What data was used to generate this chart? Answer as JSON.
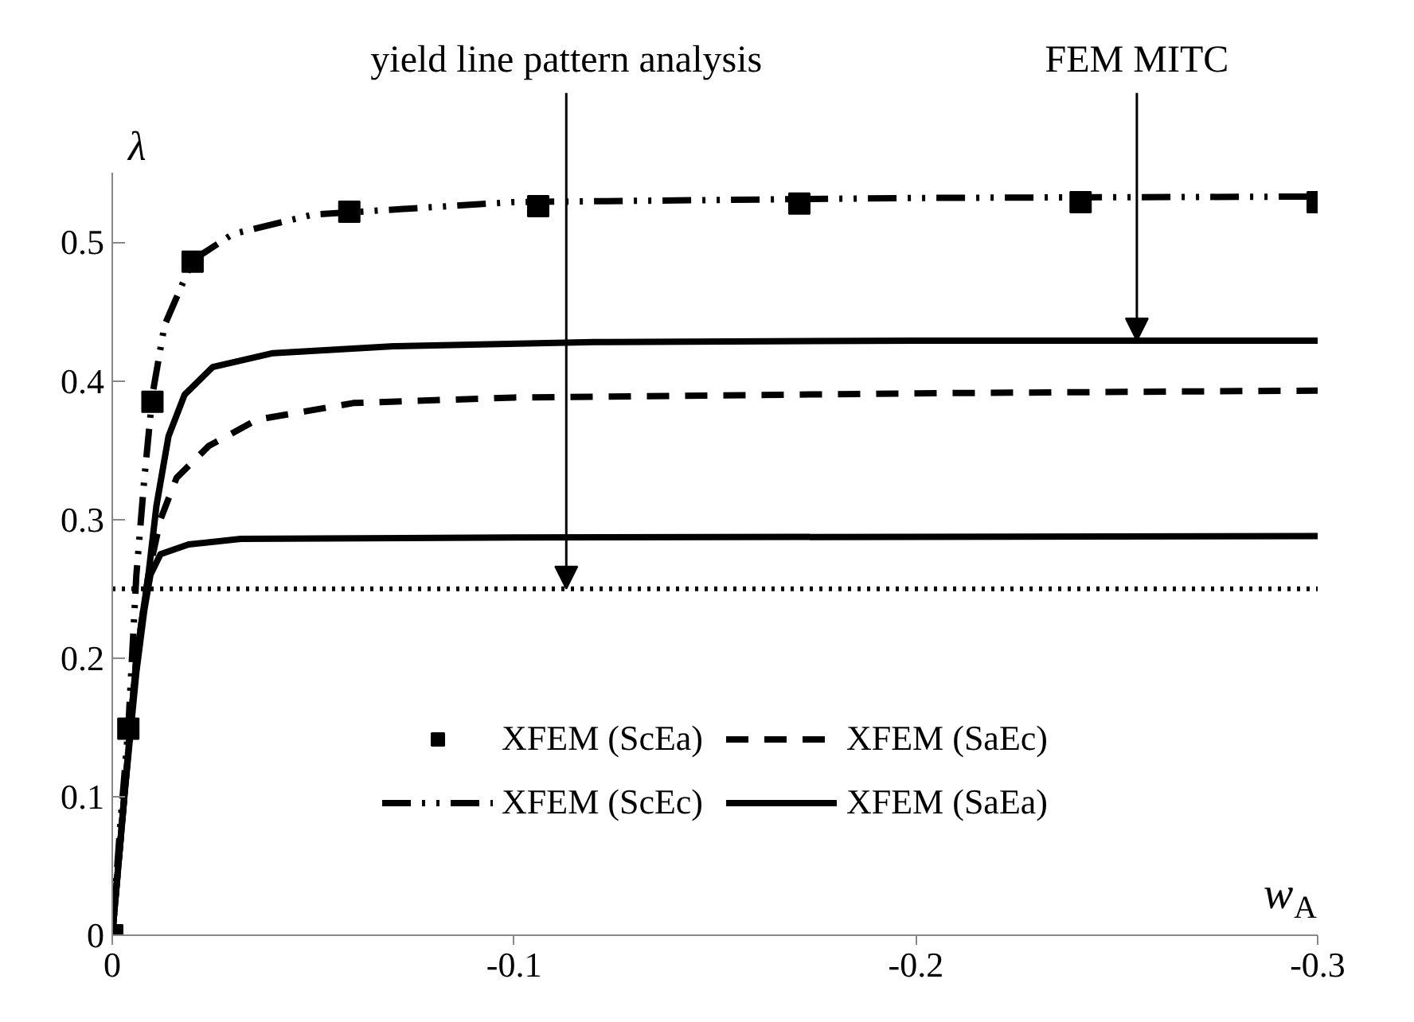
{
  "chart_data": {
    "type": "line",
    "xlabel": "w$_{A}$",
    "ylabel": "λ",
    "xlim": [
      0,
      -0.3
    ],
    "xticks": [
      0,
      -0.1,
      -0.2,
      -0.3
    ],
    "ylim": [
      0,
      0.55
    ],
    "yticks": [
      0,
      0.1,
      0.2,
      0.3,
      0.4,
      0.5
    ],
    "grid": false,
    "legend": "bottom",
    "series": [
      {
        "name": "XFEM (ScEa)",
        "type": "scatter",
        "marker": "square",
        "color": "#000000",
        "x": [
          0,
          -0.004,
          -0.01,
          -0.02,
          -0.059,
          -0.106,
          -0.171,
          -0.241,
          -0.3
        ],
        "values": [
          0,
          0.149,
          0.385,
          0.486,
          0.522,
          0.526,
          0.528,
          0.529,
          0.529
        ]
      },
      {
        "name": "XFEM (ScEc)",
        "type": "line",
        "line_style": "dashdot",
        "color": "#000000",
        "x": [
          0,
          -0.002,
          -0.004,
          -0.006,
          -0.008,
          -0.01,
          -0.013,
          -0.02,
          -0.03,
          -0.05,
          -0.1,
          -0.2,
          -0.3
        ],
        "values": [
          0,
          0.08,
          0.15,
          0.26,
          0.33,
          0.39,
          0.44,
          0.487,
          0.506,
          0.52,
          0.529,
          0.532,
          0.533
        ]
      },
      {
        "name": "XFEM (SaEc)",
        "type": "line",
        "line_style": "dashed",
        "color": "#000000",
        "x": [
          0,
          -0.003,
          -0.006,
          -0.009,
          -0.012,
          -0.016,
          -0.024,
          -0.036,
          -0.06,
          -0.1,
          -0.2,
          -0.3
        ],
        "values": [
          0,
          0.1,
          0.2,
          0.26,
          0.3,
          0.33,
          0.353,
          0.372,
          0.384,
          0.388,
          0.391,
          0.393
        ]
      },
      {
        "name": "XFEM (SaEa)",
        "type": "line",
        "line_style": "solid",
        "color": "#000000",
        "x": [
          0,
          -0.003,
          -0.006,
          -0.009,
          -0.011,
          -0.014,
          -0.018,
          -0.025,
          -0.04,
          -0.07,
          -0.12,
          -0.2,
          -0.3
        ],
        "values": [
          0,
          0.1,
          0.2,
          0.26,
          0.31,
          0.36,
          0.39,
          0.41,
          0.42,
          0.425,
          0.428,
          0.429,
          0.429
        ]
      },
      {
        "type": "line",
        "line_style": "solid",
        "color": "#000000",
        "x": [
          0,
          -0.003,
          -0.006,
          -0.008,
          -0.0095,
          -0.012,
          -0.019,
          -0.032,
          -0.1,
          -0.3
        ],
        "values": [
          0,
          0.1,
          0.19,
          0.235,
          0.26,
          0.275,
          0.282,
          0.286,
          0.287,
          0.288
        ]
      }
    ],
    "ref_lines": [
      {
        "axis": "y",
        "value": 0.25,
        "line_style": "dotted",
        "color": "#000000"
      }
    ],
    "annotations": [
      {
        "text": "yield line pattern analysis",
        "x": -0.113,
        "y": 0.25
      },
      {
        "text": "FEM MITC",
        "x": -0.255,
        "y": 0.429
      }
    ]
  }
}
